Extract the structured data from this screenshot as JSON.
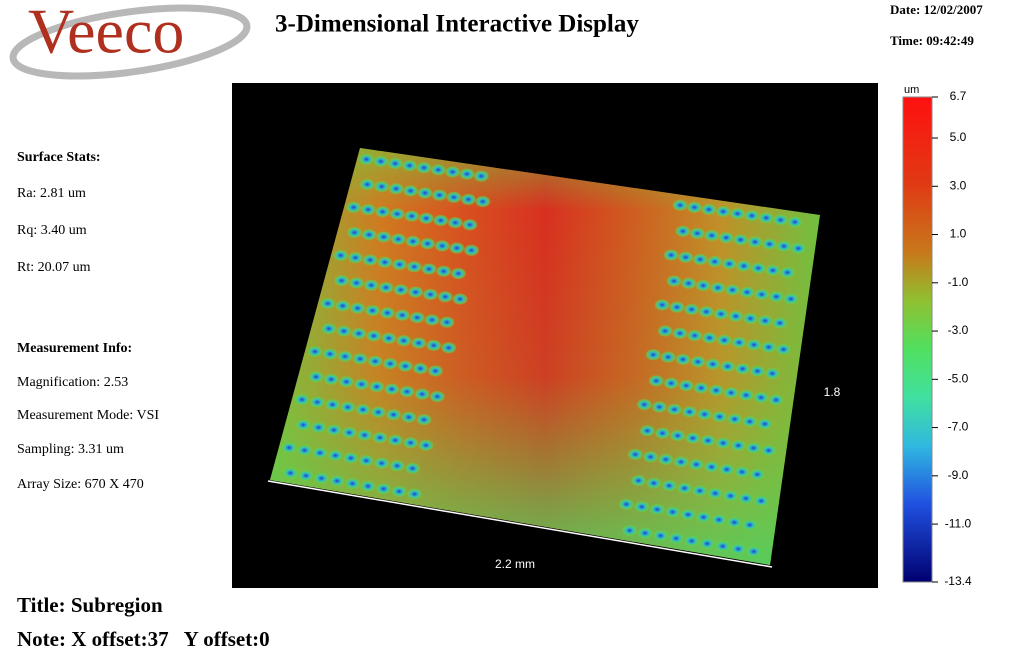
{
  "logo": "Veeco",
  "header": {
    "title": "3-Dimensional Interactive Display",
    "date": "Date: 12/02/2007",
    "time": "Time: 09:42:49"
  },
  "surface_stats": {
    "heading": "Surface Stats:",
    "items": [
      "Ra: 2.81 um",
      "Rq: 3.40 um",
      "Rt: 20.07 um"
    ]
  },
  "measurement_info": {
    "heading": "Measurement Info:",
    "items": [
      "Magnification: 2.53",
      "Measurement Mode: VSI",
      "Sampling: 3.31 um",
      "Array Size: 670 X 470"
    ]
  },
  "plot": {
    "x_axis_label": "2.2 mm",
    "y_axis_label": "1.8"
  },
  "colorbar": {
    "unit": "um",
    "lim": [
      -13.4,
      6.7
    ],
    "ticks": [
      6.7,
      {
        "value": 5,
        "label": "5.0"
      },
      {
        "value": 3,
        "label": "3.0"
      },
      {
        "value": 1,
        "label": "1.0"
      },
      {
        "value": -1,
        "label": "-1.0"
      },
      {
        "value": -3,
        "label": "-3.0"
      },
      {
        "value": -5,
        "label": "-5.0"
      },
      {
        "value": -7,
        "label": "-7.0"
      },
      {
        "value": -9,
        "label": "-9.0"
      },
      {
        "value": -11,
        "label": "-11.0"
      },
      -13.4
    ]
  },
  "footer": {
    "title": "Title: Subregion",
    "note": "Note: X offset:37   Y offset:0"
  }
}
